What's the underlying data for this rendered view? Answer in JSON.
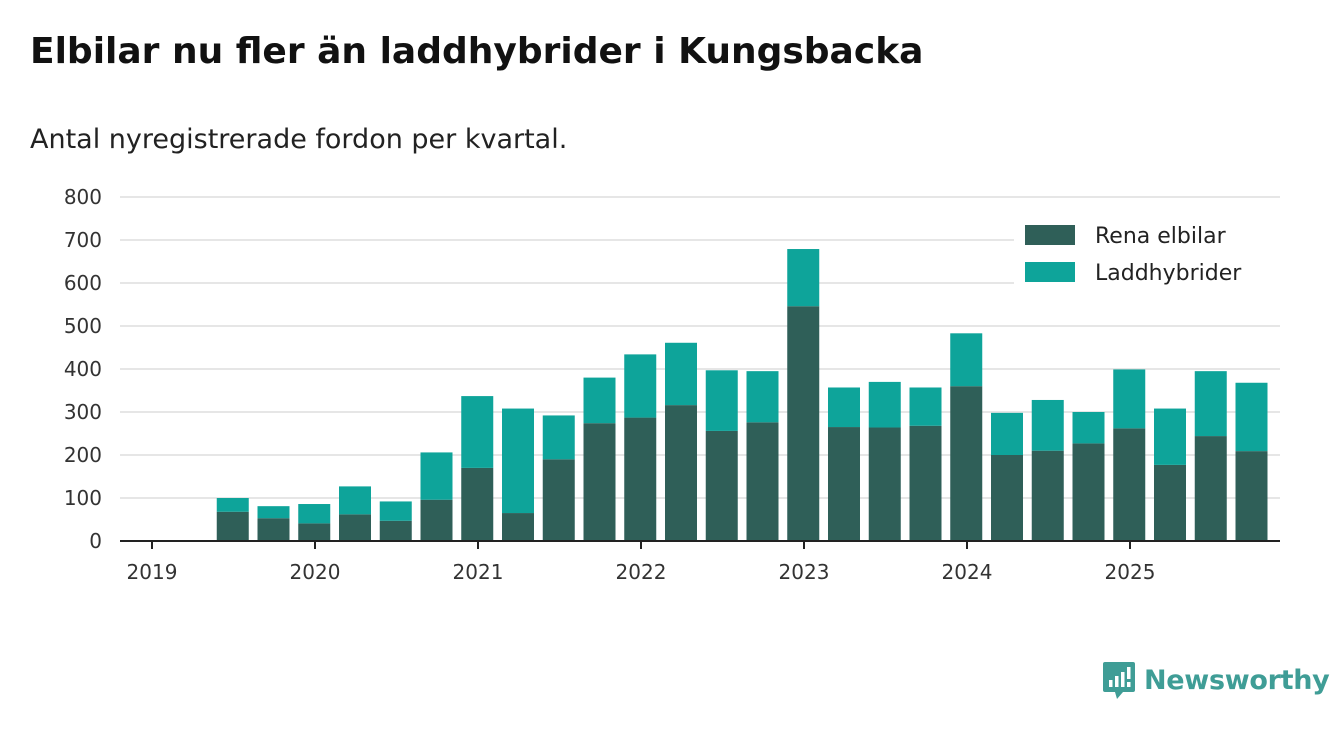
{
  "title": "Elbilar nu fler än laddhybrider i Kungsbacka",
  "subtitle": "Antal nyregistrerade fordon per kvartal.",
  "brand": {
    "name": "Newsworthy",
    "icon": "newsworthy-logo-icon",
    "color": "#3f9d96"
  },
  "chart_data": {
    "type": "bar",
    "stacked": true,
    "title": "Elbilar nu fler än laddhybrider i Kungsbacka",
    "subtitle": "Antal nyregistrerade fordon per kvartal.",
    "xlabel": "",
    "ylabel": "",
    "ylim": [
      0,
      800
    ],
    "yticks": [
      0,
      100,
      200,
      300,
      400,
      500,
      600,
      700,
      800
    ],
    "grid": true,
    "legend_position": "top-right",
    "x_start": 2019.0,
    "x_end": 2026.0,
    "x_ticks": [
      {
        "label": "2019",
        "value": 2019
      },
      {
        "label": "2020",
        "value": 2020
      },
      {
        "label": "2021",
        "value": 2021
      },
      {
        "label": "2022",
        "value": 2022
      },
      {
        "label": "2023",
        "value": 2023
      },
      {
        "label": "2024",
        "value": 2024
      },
      {
        "label": "2025",
        "value": 2025
      }
    ],
    "categories": [
      "2019 Q2",
      "2019 Q3",
      "2019 Q4",
      "2020 Q1",
      "2020 Q2",
      "2020 Q3",
      "2020 Q4",
      "2021 Q1",
      "2021 Q2",
      "2021 Q3",
      "2021 Q4",
      "2022 Q1",
      "2022 Q2",
      "2022 Q3",
      "2022 Q4",
      "2023 Q1",
      "2023 Q2",
      "2023 Q3",
      "2023 Q4",
      "2024 Q1",
      "2024 Q2",
      "2024 Q3",
      "2024 Q4",
      "2025 Q1",
      "2025 Q2",
      "2025 Q3"
    ],
    "x_positions": [
      2019.25,
      2019.5,
      2019.75,
      2020.0,
      2020.25,
      2020.5,
      2020.75,
      2021.0,
      2021.25,
      2021.5,
      2021.75,
      2022.0,
      2022.25,
      2022.5,
      2022.75,
      2023.0,
      2023.25,
      2023.5,
      2023.75,
      2024.0,
      2024.25,
      2024.5,
      2024.75,
      2025.0,
      2025.25,
      2025.5
    ],
    "series": [
      {
        "name": "Rena elbilar",
        "color": "#2f5f58",
        "values": [
          68,
          53,
          41,
          62,
          47,
          96,
          170,
          65,
          190,
          274,
          287,
          316,
          256,
          276,
          546,
          265,
          264,
          268,
          360,
          200,
          210,
          227,
          262,
          177,
          244,
          209
        ]
      },
      {
        "name": "Laddhybrider",
        "color": "#0ea49a",
        "values": [
          32,
          28,
          45,
          65,
          45,
          110,
          167,
          243,
          102,
          106,
          147,
          145,
          141,
          119,
          133,
          92,
          106,
          89,
          123,
          98,
          118,
          73,
          137,
          131,
          151,
          159
        ]
      }
    ]
  }
}
